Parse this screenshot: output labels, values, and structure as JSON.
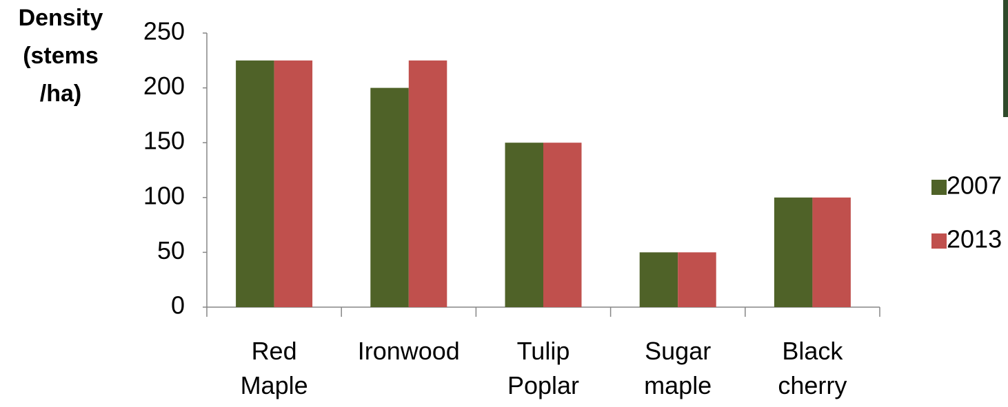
{
  "chart_data": {
    "type": "bar",
    "ylabel": [
      "Density",
      "(stems",
      "/ha)"
    ],
    "categories": [
      "Red Maple",
      "Ironwood",
      "Tulip Poplar",
      "Sugar maple",
      "Black cherry"
    ],
    "series": [
      {
        "name": "2007",
        "color": "#4f6228",
        "values": [
          225,
          200,
          150,
          50,
          100
        ]
      },
      {
        "name": "2013",
        "color": "#c0504d",
        "values": [
          225,
          225,
          150,
          50,
          100
        ]
      }
    ],
    "ylim": [
      0,
      250
    ],
    "yticks": [
      0,
      50,
      100,
      150,
      200,
      250
    ],
    "legend": "right"
  }
}
